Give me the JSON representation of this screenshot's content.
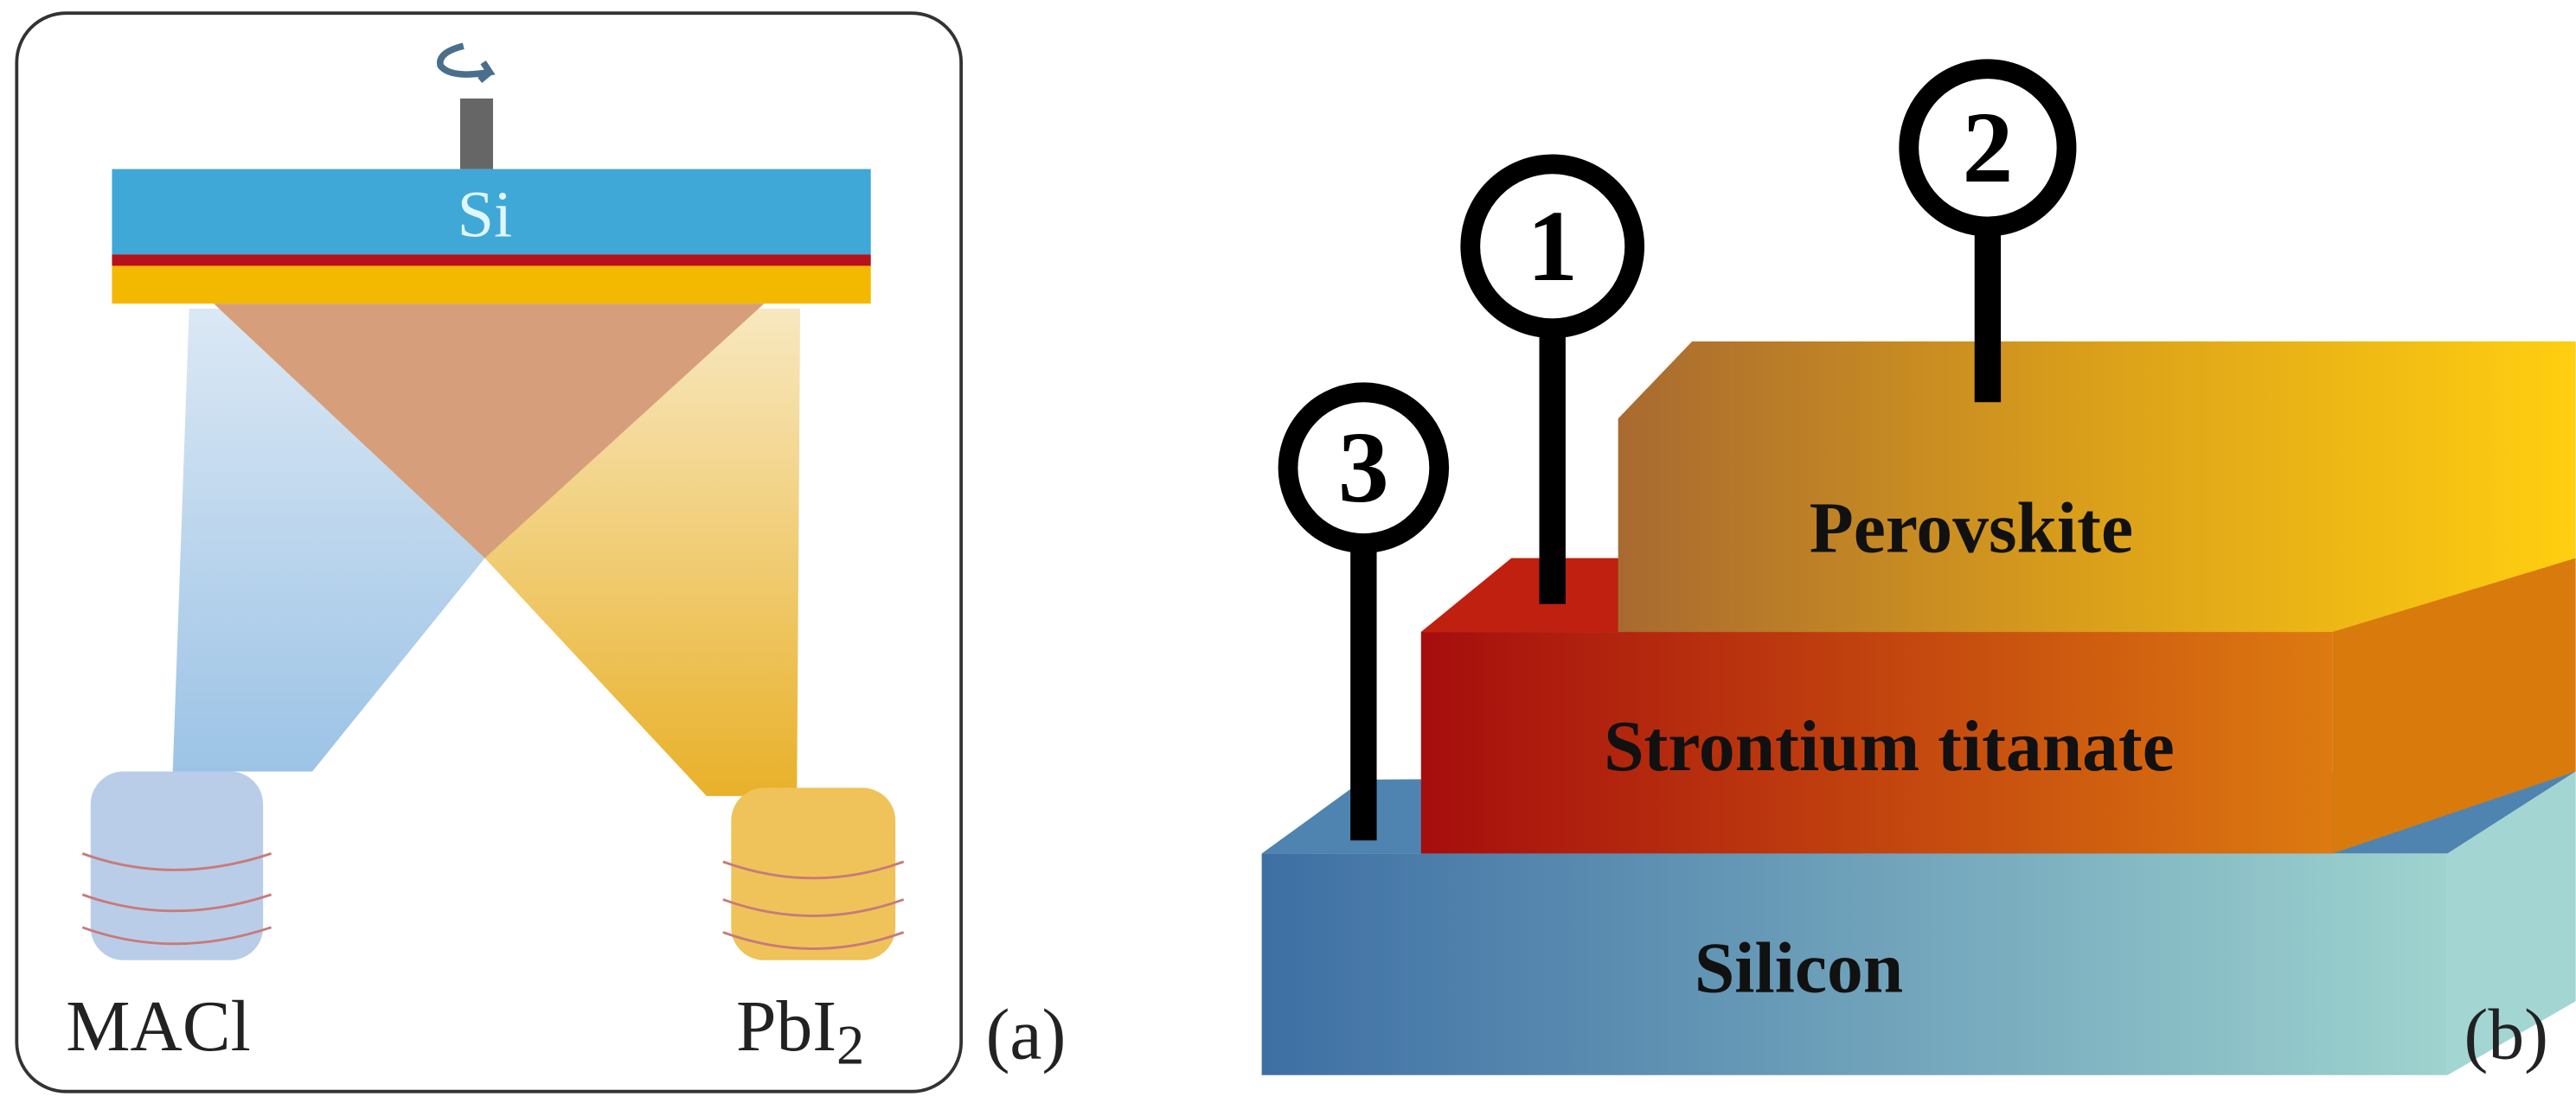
{
  "panel_a": {
    "substrate": "Si",
    "left_source": "MACl",
    "right_source": {
      "base": "PbI",
      "subscript": "2"
    },
    "tag": "(a)"
  },
  "panel_b": {
    "markers": [
      "1",
      "2",
      "3"
    ],
    "layers": [
      "Perovskite",
      "Strontium titanate",
      "Silicon"
    ],
    "tag": "(b)"
  }
}
